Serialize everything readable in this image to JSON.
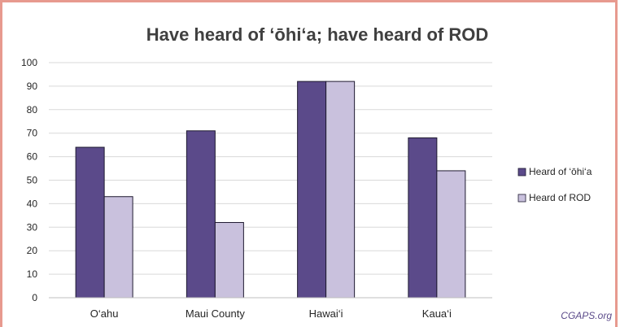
{
  "chart_data": {
    "type": "bar",
    "title": "Have heard of ‘ōhi‘a; have heard of ROD",
    "categories": [
      "O‘ahu",
      "Maui County",
      "Hawai‘i",
      "Kaua‘i"
    ],
    "series": [
      {
        "name": "Heard of ‘ōhi‘a",
        "values": [
          64,
          71,
          92,
          68
        ],
        "color": "#5b4a8a"
      },
      {
        "name": "Heard of ROD",
        "values": [
          43,
          32,
          92,
          54
        ],
        "color": "#c9c1dd"
      }
    ],
    "ylim": [
      0,
      100
    ],
    "yticks": [
      0,
      10,
      20,
      30,
      40,
      50,
      60,
      70,
      80,
      90,
      100
    ],
    "grid": true,
    "legend": "right",
    "xlabel": "",
    "ylabel": ""
  },
  "credit": "CGAPS.org",
  "colors": {
    "border": "#e79a8f",
    "grid": "#d9d9d9"
  }
}
